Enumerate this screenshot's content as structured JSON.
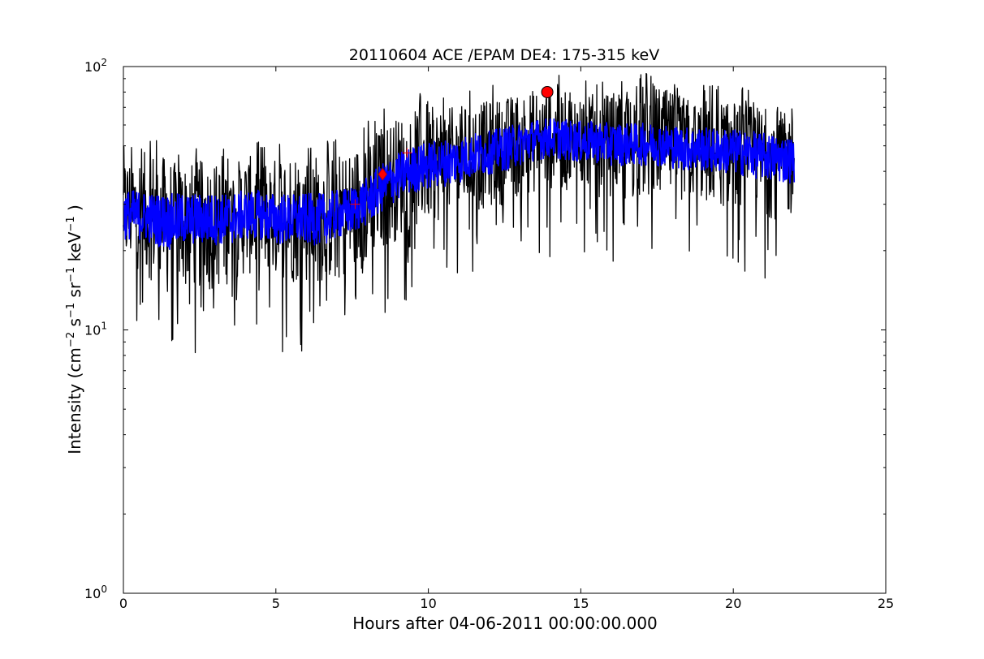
{
  "chart_data": {
    "type": "line",
    "title": "20110604 ACE /EPAM DE4: 175-315 keV",
    "xlabel": "Hours after 04-06-2011 00:00:00.000",
    "ylabel": "Intensity (cm^-2 s^-1 sr^-1 keV^-1 )",
    "ylabel_parts": {
      "open": "Intensity (cm",
      "exp_cm": "−2",
      "s": " s",
      "exp_s": "−1",
      "sr": " sr",
      "exp_sr": "−1",
      "kev": " keV",
      "exp_kev": "−1",
      "close": " )"
    },
    "xlim": [
      0,
      25
    ],
    "ylim": [
      1,
      100
    ],
    "yscale": "log",
    "grid": false,
    "x_ticks": [
      {
        "value": 0,
        "label": "0"
      },
      {
        "value": 5,
        "label": "5"
      },
      {
        "value": 10,
        "label": "10"
      },
      {
        "value": 15,
        "label": "15"
      },
      {
        "value": 20,
        "label": "20"
      },
      {
        "value": 25,
        "label": "25"
      }
    ],
    "y_ticks": [
      {
        "value": 1,
        "base": "10",
        "exp": "0"
      },
      {
        "value": 10,
        "base": "10",
        "exp": "1"
      },
      {
        "value": 100,
        "base": "10",
        "exp": "2"
      }
    ],
    "series": [
      {
        "color": "#000000",
        "style": "noisy raw intensity",
        "x": [
          0.0,
          0.5,
          1.0,
          1.5,
          2.0,
          2.5,
          3.0,
          3.5,
          4.0,
          4.5,
          5.0,
          5.5,
          6.0,
          6.5,
          7.0,
          7.5,
          8.0,
          8.5,
          9.0,
          9.5,
          10.0,
          10.5,
          11.0,
          11.5,
          12.0,
          12.5,
          13.0,
          13.5,
          14.0,
          14.5,
          15.0,
          15.5,
          16.0,
          16.5,
          17.0,
          17.5,
          18.0,
          18.5,
          19.0,
          19.5,
          20.0,
          20.5,
          21.0,
          21.5,
          22.0
        ],
        "values": [
          27,
          27,
          26,
          26,
          26,
          26,
          26,
          26,
          27,
          27,
          26,
          26,
          26,
          26,
          27,
          28,
          31,
          35,
          38,
          41,
          42,
          43,
          44,
          46,
          47,
          49,
          51,
          53,
          54,
          53,
          52,
          52,
          51,
          51,
          51,
          51,
          50,
          49,
          49,
          48,
          48,
          47,
          46,
          45,
          44
        ],
        "lower_envelope": [
          17,
          17,
          15,
          13,
          14,
          14,
          14,
          15,
          16,
          16,
          15,
          15,
          15,
          15,
          15,
          15,
          17,
          20,
          22,
          24,
          25,
          26,
          27,
          28,
          29,
          30,
          32,
          33,
          34,
          33,
          33,
          32,
          32,
          31,
          31,
          31,
          31,
          30,
          30,
          29,
          29,
          28,
          27,
          26,
          26
        ],
        "upper_envelope": [
          45,
          47,
          48,
          44,
          42,
          44,
          43,
          42,
          46,
          45,
          45,
          48,
          46,
          47,
          46,
          48,
          54,
          60,
          64,
          68,
          70,
          70,
          70,
          72,
          74,
          76,
          80,
          82,
          84,
          80,
          78,
          79,
          78,
          78,
          85,
          84,
          80,
          76,
          75,
          74,
          74,
          72,
          70,
          68,
          64
        ]
      },
      {
        "color": "#0000ff",
        "style": "smoothed intensity",
        "x": [
          0.0,
          0.5,
          1.0,
          1.5,
          2.0,
          2.5,
          3.0,
          3.5,
          4.0,
          4.5,
          5.0,
          5.5,
          6.0,
          6.5,
          7.0,
          7.5,
          8.0,
          8.5,
          9.0,
          9.5,
          10.0,
          10.5,
          11.0,
          11.5,
          12.0,
          12.5,
          13.0,
          13.5,
          14.0,
          14.5,
          15.0,
          15.5,
          16.0,
          16.5,
          17.0,
          17.5,
          18.0,
          18.5,
          19.0,
          19.5,
          20.0,
          20.5,
          21.0,
          21.5,
          22.0
        ],
        "values": [
          27,
          27,
          26,
          26,
          26,
          26,
          26,
          26,
          27,
          27,
          26,
          26,
          26,
          26,
          27,
          28,
          31,
          35,
          38,
          41,
          42,
          43,
          44,
          46,
          47,
          49,
          51,
          53,
          54,
          53,
          52,
          52,
          51,
          51,
          51,
          51,
          50,
          49,
          49,
          48,
          48,
          47,
          46,
          45,
          44
        ],
        "lower_envelope": [
          22,
          22,
          21,
          20,
          21,
          21,
          21,
          21,
          22,
          22,
          21,
          21,
          21,
          21,
          22,
          23,
          25,
          28,
          31,
          33,
          34,
          35,
          36,
          38,
          39,
          40,
          42,
          44,
          45,
          44,
          43,
          43,
          42,
          42,
          42,
          42,
          41,
          40,
          40,
          39,
          39,
          38,
          37,
          36,
          36
        ],
        "upper_envelope": [
          34,
          34,
          33,
          33,
          33,
          33,
          33,
          33,
          34,
          34,
          33,
          33,
          33,
          33,
          34,
          35,
          38,
          43,
          47,
          50,
          52,
          53,
          54,
          56,
          57,
          59,
          61,
          63,
          64,
          63,
          62,
          62,
          61,
          61,
          61,
          61,
          60,
          59,
          59,
          58,
          58,
          57,
          56,
          55,
          54
        ]
      }
    ],
    "markers": [
      {
        "shape": "circle",
        "x": 13.9,
        "y": 80,
        "color": "#ff0000"
      },
      {
        "shape": "diamond",
        "x": 8.5,
        "y": 39,
        "color": "#ff0000"
      },
      {
        "shape": "plus",
        "x": 7.6,
        "y": 30,
        "color": "#ff0000"
      },
      {
        "shape": "plus",
        "x": 9.3,
        "y": 47,
        "color": "#ff0000"
      }
    ]
  }
}
